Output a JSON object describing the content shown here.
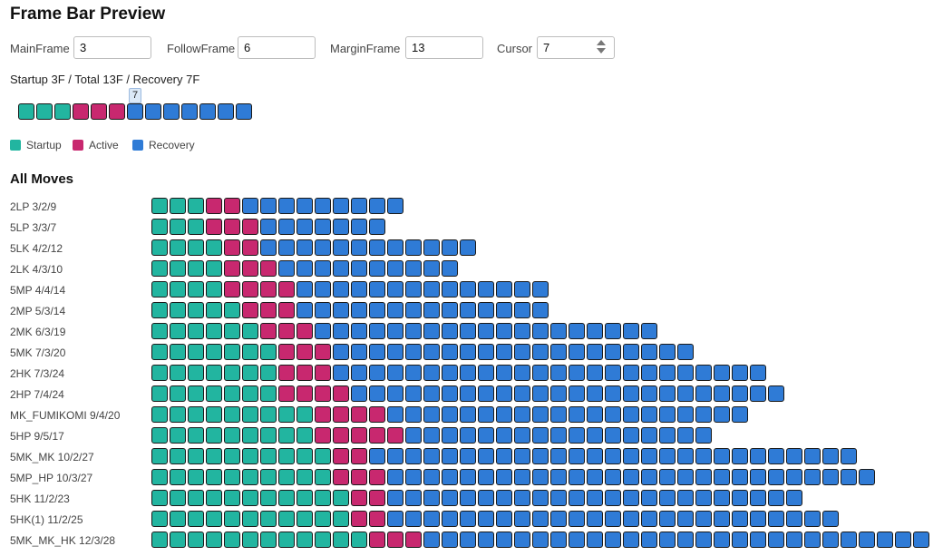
{
  "title": "Frame Bar Preview",
  "colors": {
    "startup": "#22b5a0",
    "active": "#c8286f",
    "recovery": "#2f7bd6"
  },
  "controls": {
    "main_frame": {
      "label": "MainFrame",
      "value": "3"
    },
    "follow_frame": {
      "label": "FollowFrame",
      "value": "6"
    },
    "margin_frame": {
      "label": "MarginFrame",
      "value": "13"
    },
    "cursor": {
      "label": "Cursor",
      "value": "7"
    }
  },
  "summary": "Startup 3F / Total 13F / Recovery 7F",
  "preview": {
    "startup": 3,
    "active": 3,
    "recovery": 7,
    "cursor": 7,
    "cursor_label": "7"
  },
  "legend": [
    {
      "label": "Startup",
      "type": "startup"
    },
    {
      "label": "Active",
      "type": "active"
    },
    {
      "label": "Recovery",
      "type": "recovery"
    }
  ],
  "section_title": "All Moves",
  "moves": [
    {
      "label": "2LP 3/2/9",
      "startup": 3,
      "active": 2,
      "recovery": 9
    },
    {
      "label": "5LP 3/3/7",
      "startup": 3,
      "active": 3,
      "recovery": 7
    },
    {
      "label": "5LK 4/2/12",
      "startup": 4,
      "active": 2,
      "recovery": 12
    },
    {
      "label": "2LK 4/3/10",
      "startup": 4,
      "active": 3,
      "recovery": 10
    },
    {
      "label": "5MP 4/4/14",
      "startup": 4,
      "active": 4,
      "recovery": 14
    },
    {
      "label": "2MP 5/3/14",
      "startup": 5,
      "active": 3,
      "recovery": 14
    },
    {
      "label": "2MK 6/3/19",
      "startup": 6,
      "active": 3,
      "recovery": 19
    },
    {
      "label": "5MK 7/3/20",
      "startup": 7,
      "active": 3,
      "recovery": 20
    },
    {
      "label": "2HK 7/3/24",
      "startup": 7,
      "active": 3,
      "recovery": 24
    },
    {
      "label": "2HP 7/4/24",
      "startup": 7,
      "active": 4,
      "recovery": 24
    },
    {
      "label": "MK_FUMIKOMI 9/4/20",
      "startup": 9,
      "active": 4,
      "recovery": 20
    },
    {
      "label": "5HP 9/5/17",
      "startup": 9,
      "active": 5,
      "recovery": 17
    },
    {
      "label": "5MK_MK 10/2/27",
      "startup": 10,
      "active": 2,
      "recovery": 27
    },
    {
      "label": "5MP_HP 10/3/27",
      "startup": 10,
      "active": 3,
      "recovery": 27
    },
    {
      "label": "5HK 11/2/23",
      "startup": 11,
      "active": 2,
      "recovery": 23
    },
    {
      "label": "5HK(1) 11/2/25",
      "startup": 11,
      "active": 2,
      "recovery": 25
    },
    {
      "label": "5MK_MK_HK 12/3/28",
      "startup": 12,
      "active": 3,
      "recovery": 28
    }
  ]
}
